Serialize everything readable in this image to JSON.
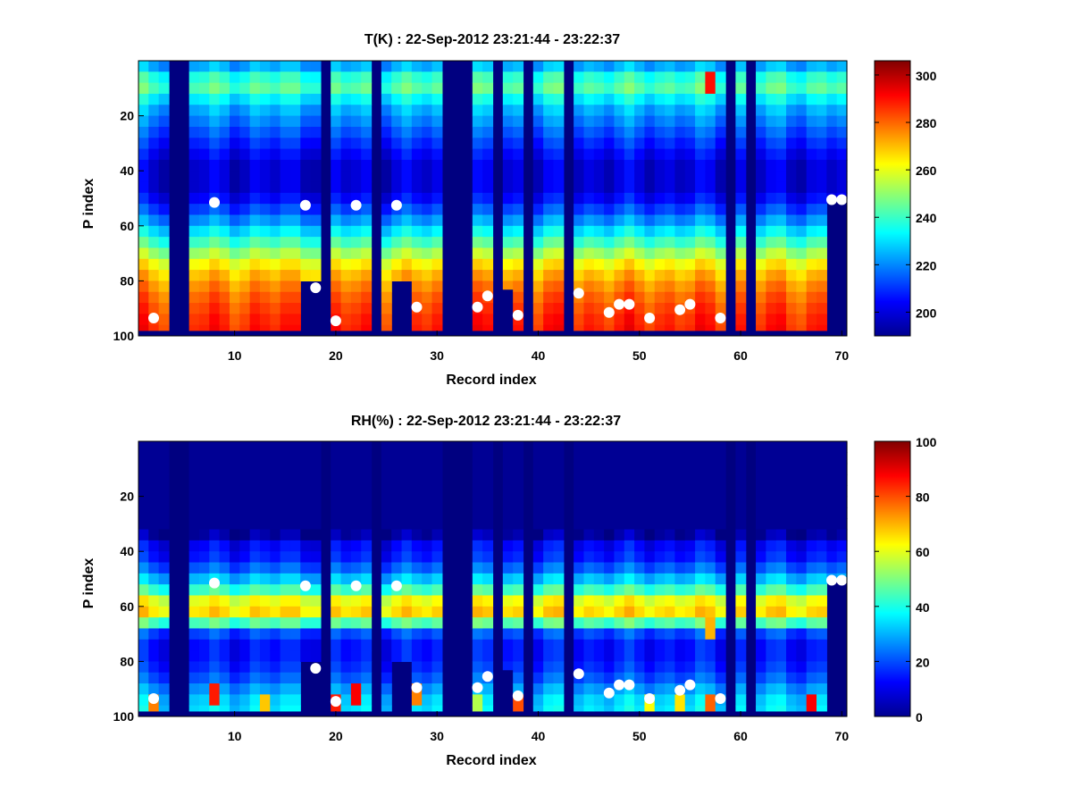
{
  "chart_data": [
    {
      "type": "heatmap",
      "title": "T(K) : 22-Sep-2012 23:21:44 - 23:22:37",
      "xlabel": "Record index",
      "ylabel": "P index",
      "xlim": [
        1,
        70
      ],
      "ylim": [
        100,
        1
      ],
      "x_ticks": [
        10,
        20,
        30,
        40,
        50,
        60,
        70
      ],
      "y_ticks": [
        20,
        40,
        60,
        80,
        100
      ],
      "colormap": "jet",
      "clim": [
        190,
        306
      ],
      "colorbar_ticks": [
        200,
        220,
        240,
        260,
        280,
        300
      ],
      "profile": [
        [
          1,
          220
        ],
        [
          5,
          232
        ],
        [
          9,
          248
        ],
        [
          12,
          238
        ],
        [
          18,
          225
        ],
        [
          28,
          212
        ],
        [
          38,
          200
        ],
        [
          48,
          200
        ],
        [
          56,
          215
        ],
        [
          62,
          230
        ],
        [
          68,
          245
        ],
        [
          74,
          262
        ],
        [
          80,
          273
        ],
        [
          86,
          280
        ],
        [
          92,
          285
        ],
        [
          97,
          288
        ],
        [
          100,
          288
        ]
      ],
      "gap_columns": [
        4,
        5,
        19,
        24,
        31,
        32,
        33,
        36,
        39,
        43,
        59,
        61
      ],
      "partial_columns": [
        [
          17,
          80
        ],
        [
          18,
          80
        ],
        [
          26,
          80
        ],
        [
          27,
          80
        ],
        [
          37,
          83
        ],
        [
          69,
          50
        ],
        [
          70,
          50
        ]
      ],
      "fill_bottom": 98,
      "warm_spot": {
        "x": 57,
        "y_from": 6,
        "y_to": 14,
        "value": 290
      },
      "markers": [
        [
          2,
          94
        ],
        [
          8,
          52
        ],
        [
          17,
          53
        ],
        [
          18,
          83
        ],
        [
          20,
          95
        ],
        [
          22,
          53
        ],
        [
          26,
          53
        ],
        [
          28,
          90
        ],
        [
          34,
          90
        ],
        [
          35,
          86
        ],
        [
          38,
          93
        ],
        [
          44,
          85
        ],
        [
          47,
          92
        ],
        [
          48,
          89
        ],
        [
          49,
          89
        ],
        [
          51,
          94
        ],
        [
          54,
          91
        ],
        [
          55,
          89
        ],
        [
          58,
          94
        ],
        [
          69,
          51
        ],
        [
          70,
          51
        ]
      ]
    },
    {
      "type": "heatmap",
      "title": "RH(%) : 22-Sep-2012 23:21:44 - 23:22:37",
      "xlabel": "Record index",
      "ylabel": "P index",
      "xlim": [
        1,
        70
      ],
      "ylim": [
        100,
        1
      ],
      "x_ticks": [
        10,
        20,
        30,
        40,
        50,
        60,
        70
      ],
      "y_ticks": [
        20,
        40,
        60,
        80,
        100
      ],
      "colormap": "jet",
      "clim": [
        0,
        100
      ],
      "colorbar_ticks": [
        0,
        20,
        40,
        60,
        80,
        100
      ],
      "profile": [
        [
          1,
          2
        ],
        [
          34,
          2
        ],
        [
          38,
          12
        ],
        [
          44,
          16
        ],
        [
          50,
          30
        ],
        [
          55,
          45
        ],
        [
          59,
          63
        ],
        [
          63,
          66
        ],
        [
          66,
          50
        ],
        [
          69,
          22
        ],
        [
          74,
          14
        ],
        [
          80,
          14
        ],
        [
          86,
          20
        ],
        [
          92,
          30
        ],
        [
          96,
          35
        ],
        [
          100,
          35
        ]
      ],
      "gap_columns": [
        4,
        5,
        19,
        24,
        31,
        32,
        33,
        36,
        39,
        43,
        59,
        61
      ],
      "partial_columns": [
        [
          17,
          80
        ],
        [
          18,
          80
        ],
        [
          26,
          80
        ],
        [
          27,
          80
        ],
        [
          37,
          83
        ],
        [
          69,
          50
        ],
        [
          70,
          50
        ]
      ],
      "fill_bottom": 98,
      "wet_spots": [
        [
          2,
          95,
          75
        ],
        [
          8,
          92,
          85
        ],
        [
          13,
          95,
          68
        ],
        [
          20,
          96,
          85
        ],
        [
          22,
          92,
          88
        ],
        [
          28,
          93,
          75
        ],
        [
          34,
          95,
          55
        ],
        [
          38,
          95,
          80
        ],
        [
          51,
          96,
          62
        ],
        [
          54,
          95,
          65
        ],
        [
          57,
          96,
          78
        ],
        [
          57,
          68,
          70
        ],
        [
          67,
          95,
          88
        ]
      ],
      "markers": [
        [
          2,
          94
        ],
        [
          8,
          52
        ],
        [
          17,
          53
        ],
        [
          18,
          83
        ],
        [
          20,
          95
        ],
        [
          22,
          53
        ],
        [
          26,
          53
        ],
        [
          28,
          90
        ],
        [
          34,
          90
        ],
        [
          35,
          86
        ],
        [
          38,
          93
        ],
        [
          44,
          85
        ],
        [
          47,
          92
        ],
        [
          48,
          89
        ],
        [
          49,
          89
        ],
        [
          51,
          94
        ],
        [
          54,
          91
        ],
        [
          55,
          89
        ],
        [
          58,
          94
        ],
        [
          69,
          51
        ],
        [
          70,
          51
        ]
      ]
    }
  ]
}
